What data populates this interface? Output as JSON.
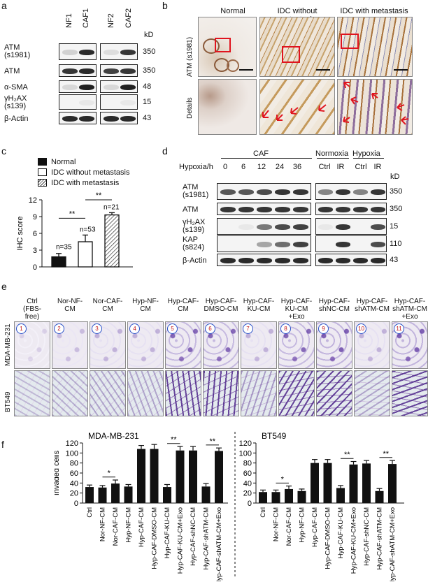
{
  "panel_a": {
    "label": "a",
    "lanes_left": [
      "NF1",
      "CAF1"
    ],
    "lanes_right": [
      "NF2",
      "CAF2"
    ],
    "kd_header": "kD",
    "rows": [
      {
        "name1": "ATM",
        "name2": "(s1981)",
        "kd": "350"
      },
      {
        "name1": "ATM",
        "name2": "",
        "kd": "350"
      },
      {
        "name1": "α-SMA",
        "name2": "",
        "kd": "48"
      },
      {
        "name1": "γH₂AX",
        "name2": "(s139)",
        "kd": "15"
      },
      {
        "name1": "β-Actin",
        "name2": "",
        "kd": "43"
      }
    ]
  },
  "panel_b": {
    "label": "b",
    "columns": [
      "Normal",
      "IDC without metastasis",
      "IDC with metastasis"
    ],
    "row_labels": [
      "ATM (s1981)",
      "Details"
    ]
  },
  "panel_c": {
    "label": "c",
    "legend": [
      "Normal",
      "IDC without metastasis",
      "IDC with metastasis"
    ],
    "significance": [
      "**",
      "**"
    ],
    "n_labels": [
      "n=35",
      "n=53",
      "n=21"
    ]
  },
  "chart_data": [
    {
      "type": "bar",
      "categories": [
        "Normal",
        "IDC without metastasis",
        "IDC with metastasis"
      ],
      "values": [
        1.8,
        4.5,
        9.3
      ],
      "errors": [
        0.6,
        1.2,
        0.4
      ],
      "ylabel": "IHC score",
      "ylim": [
        0,
        12
      ],
      "yticks": [
        0,
        3,
        6,
        9,
        12
      ],
      "title": ""
    },
    {
      "type": "bar",
      "title": "MDA-MB-231",
      "ylabel": "Invaded cells",
      "ylim": [
        0,
        120
      ],
      "yticks": [
        0,
        20,
        40,
        60,
        80,
        100,
        120
      ],
      "categories": [
        "Ctrl",
        "Nor-NF-CM",
        "Nor-CAF-CM",
        "Hyp-NF-CM",
        "Hyp-CAF-CM",
        "Hyp-CAF-DMSO-CM",
        "Hyp-CAF-KU-CM",
        "Hyp-CAF-KU-CM+Exo",
        "Hyp-CAF-shNC-CM",
        "Hyp-CAF-shATM-CM",
        "Hyp-CAF-shATM-CM+Exo"
      ],
      "values": [
        32,
        31,
        39,
        33,
        108,
        108,
        32,
        105,
        105,
        33,
        104
      ],
      "errors": [
        4,
        4,
        7,
        4,
        7,
        9,
        5,
        8,
        8,
        6,
        6
      ]
    },
    {
      "type": "bar",
      "title": "BT549",
      "ylabel": "",
      "ylim": [
        0,
        120
      ],
      "yticks": [
        0,
        20,
        40,
        60,
        80,
        100,
        120
      ],
      "categories": [
        "Ctrl",
        "Nor-NF-CM",
        "Nor-CAF-CM",
        "Hyp-NF-CM",
        "Hyp-CAF-CM",
        "Hyp-CAF-DMSO-CM",
        "Hyp-CAF-KU-CM",
        "Hyp-CAF-KU-CM+Exo",
        "Hyp-CAF-shNC-CM",
        "Hyp-CAF-shATM-CM",
        "Hyp-CAF-shATM-CM+Exo"
      ],
      "values": [
        22,
        22,
        28,
        24,
        80,
        80,
        30,
        77,
        79,
        24,
        78
      ],
      "errors": [
        4,
        4,
        6,
        4,
        7,
        7,
        5,
        6,
        6,
        5,
        7
      ]
    }
  ],
  "panel_d": {
    "label": "d",
    "caf_header": "CAF",
    "normoxia_header": "Normoxia",
    "hypoxia_header": "Hypoxia",
    "time_label": "Hypoxia/h",
    "times": [
      "0",
      "6",
      "12",
      "24",
      "36"
    ],
    "right_lanes": [
      "Ctrl",
      "IR",
      "Ctrl",
      "IR"
    ],
    "kd_header": "kD",
    "rows": [
      {
        "name1": "ATM",
        "name2": "(s1981)",
        "kd": "350"
      },
      {
        "name1": "ATM",
        "name2": "",
        "kd": "350"
      },
      {
        "name1": "γH₂AX",
        "name2": "(s139)",
        "kd": "15"
      },
      {
        "name1": "KAP",
        "name2": "(s824)",
        "kd": "110"
      },
      {
        "name1": "β-Actin",
        "name2": "",
        "kd": "43"
      }
    ]
  },
  "panel_e": {
    "label": "e",
    "columns": [
      {
        "num": "1",
        "l1": "Ctrl",
        "l2": "(FBS-",
        "l3": "free)"
      },
      {
        "num": "2",
        "l1": "Nor-NF-",
        "l2": "CM",
        "l3": ""
      },
      {
        "num": "3",
        "l1": "Nor-CAF-",
        "l2": "CM",
        "l3": ""
      },
      {
        "num": "4",
        "l1": "Hyp-NF-",
        "l2": "CM",
        "l3": ""
      },
      {
        "num": "5",
        "l1": "Hyp-CAF-",
        "l2": "CM",
        "l3": ""
      },
      {
        "num": "6",
        "l1": "Hyp-CAF-",
        "l2": "DMSO-CM",
        "l3": ""
      },
      {
        "num": "7",
        "l1": "Hyp-CAF-",
        "l2": "KU-CM",
        "l3": ""
      },
      {
        "num": "8",
        "l1": "Hyp-CAF-",
        "l2": "KU-CM",
        "l3": "+Exo"
      },
      {
        "num": "9",
        "l1": "Hyp-CAF-",
        "l2": "shNC-CM",
        "l3": ""
      },
      {
        "num": "10",
        "l1": "Hyp-CAF-",
        "l2": "shATM-CM",
        "l3": ""
      },
      {
        "num": "11",
        "l1": "Hyp-CAF-",
        "l2": "shATM-CM",
        "l3": "+Exo"
      }
    ],
    "row_labels": [
      "MDA-MB-231",
      "BT549"
    ]
  },
  "panel_f": {
    "label": "f",
    "sig_left": [
      "*",
      "**",
      "**"
    ],
    "sig_right": [
      "*",
      "**",
      "**"
    ]
  }
}
